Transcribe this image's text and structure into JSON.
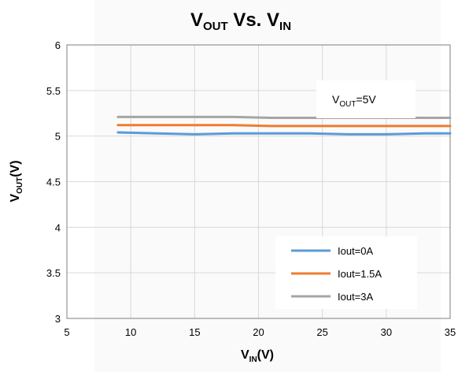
{
  "chart_data": {
    "type": "line",
    "title": {
      "main": "V",
      "sub": "OUT",
      "mid": " Vs. V",
      "sub2": "IN"
    },
    "xlabel": {
      "main": "V",
      "sub": "IN",
      "tail": "(V)"
    },
    "ylabel": {
      "main": "V",
      "sub": "OUT",
      "tail": "(V)"
    },
    "xlim": [
      5,
      35
    ],
    "ylim": [
      3,
      6
    ],
    "xticks": [
      "5",
      "10",
      "15",
      "20",
      "25",
      "30",
      "35"
    ],
    "yticks": [
      "3",
      "3.5",
      "4",
      "4.5",
      "5",
      "5.5",
      "6"
    ],
    "grid": true,
    "legend_position": "bottom-right",
    "annotation": {
      "main": "V",
      "sub": "OUT",
      "tail": "=5V"
    },
    "series": [
      {
        "name": "Iout=0A",
        "color": "#5B9BD5",
        "x": [
          9,
          12,
          15,
          18,
          21,
          24,
          27,
          30,
          33,
          35
        ],
        "y": [
          5.04,
          5.03,
          5.02,
          5.03,
          5.03,
          5.03,
          5.02,
          5.02,
          5.03,
          5.03
        ]
      },
      {
        "name": "Iout=1.5A",
        "color": "#ED7D31",
        "x": [
          9,
          12,
          15,
          18,
          21,
          24,
          27,
          30,
          33,
          35
        ],
        "y": [
          5.12,
          5.12,
          5.12,
          5.12,
          5.11,
          5.11,
          5.11,
          5.11,
          5.11,
          5.11
        ]
      },
      {
        "name": "Iout=3A",
        "color": "#A5A5A5",
        "x": [
          9,
          12,
          15,
          18,
          21,
          24,
          27,
          30,
          33,
          35
        ],
        "y": [
          5.21,
          5.21,
          5.21,
          5.21,
          5.2,
          5.2,
          5.2,
          5.2,
          5.2,
          5.2
        ]
      }
    ]
  }
}
